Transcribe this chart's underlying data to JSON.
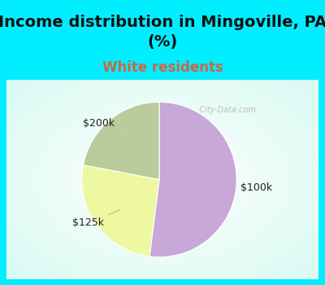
{
  "title": "Income distribution in Mingoville, PA\n(%)",
  "subtitle": "White residents",
  "title_fontsize": 14,
  "subtitle_fontsize": 12,
  "title_color": "#111111",
  "subtitle_color": "#cc6644",
  "slices": [
    {
      "label": "$100k",
      "value": 52,
      "color": "#c8a8d8"
    },
    {
      "label": "$200k",
      "value": 26,
      "color": "#eef8a0"
    },
    {
      "label": "$125k",
      "value": 22,
      "color": "#b8cc9c"
    }
  ],
  "label_color": "#222222",
  "label_fontsize": 9,
  "bg_color": "#00eeff",
  "chart_bg_color": "#ffffff",
  "startangle": 90,
  "watermark": "  City-Data.com"
}
